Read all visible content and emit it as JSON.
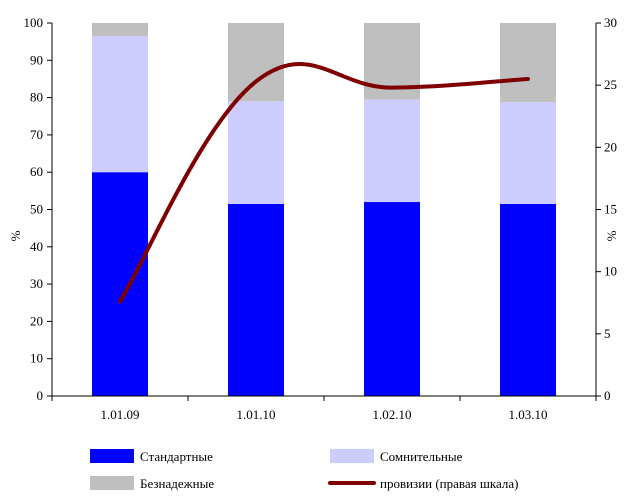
{
  "chart_data": {
    "type": "bar",
    "stacked": true,
    "categories": [
      "1.01.09",
      "1.01.10",
      "1.02.10",
      "1.03.10"
    ],
    "series": [
      {
        "name": "Стандартные",
        "color": "#0000ff",
        "values": [
          60,
          51.5,
          52,
          51.5
        ]
      },
      {
        "name": "Сомнительные",
        "color": "#ccccff",
        "values": [
          36.5,
          27.5,
          27.5,
          27.3
        ]
      },
      {
        "name": "Безнадежные",
        "color": "#bfbfbf",
        "values": [
          3.5,
          21,
          20.5,
          21.2
        ]
      }
    ],
    "line": {
      "name": "провизии (правая шкала)",
      "color": "#7f0000",
      "values": [
        7.6,
        25.3,
        24.8,
        25.5
      ]
    },
    "ylabel_left": "%",
    "ylabel_right": "%",
    "ylim_left": [
      0,
      100
    ],
    "ylim_right": [
      0,
      30
    ],
    "yticks_left": [
      "0",
      "10",
      "20",
      "30",
      "40",
      "50",
      "60",
      "70",
      "80",
      "90",
      "100"
    ],
    "yticks_right": [
      "0",
      "5",
      "10",
      "15",
      "20",
      "25",
      "30"
    ],
    "grid": false,
    "legend_placement": "bottom"
  }
}
